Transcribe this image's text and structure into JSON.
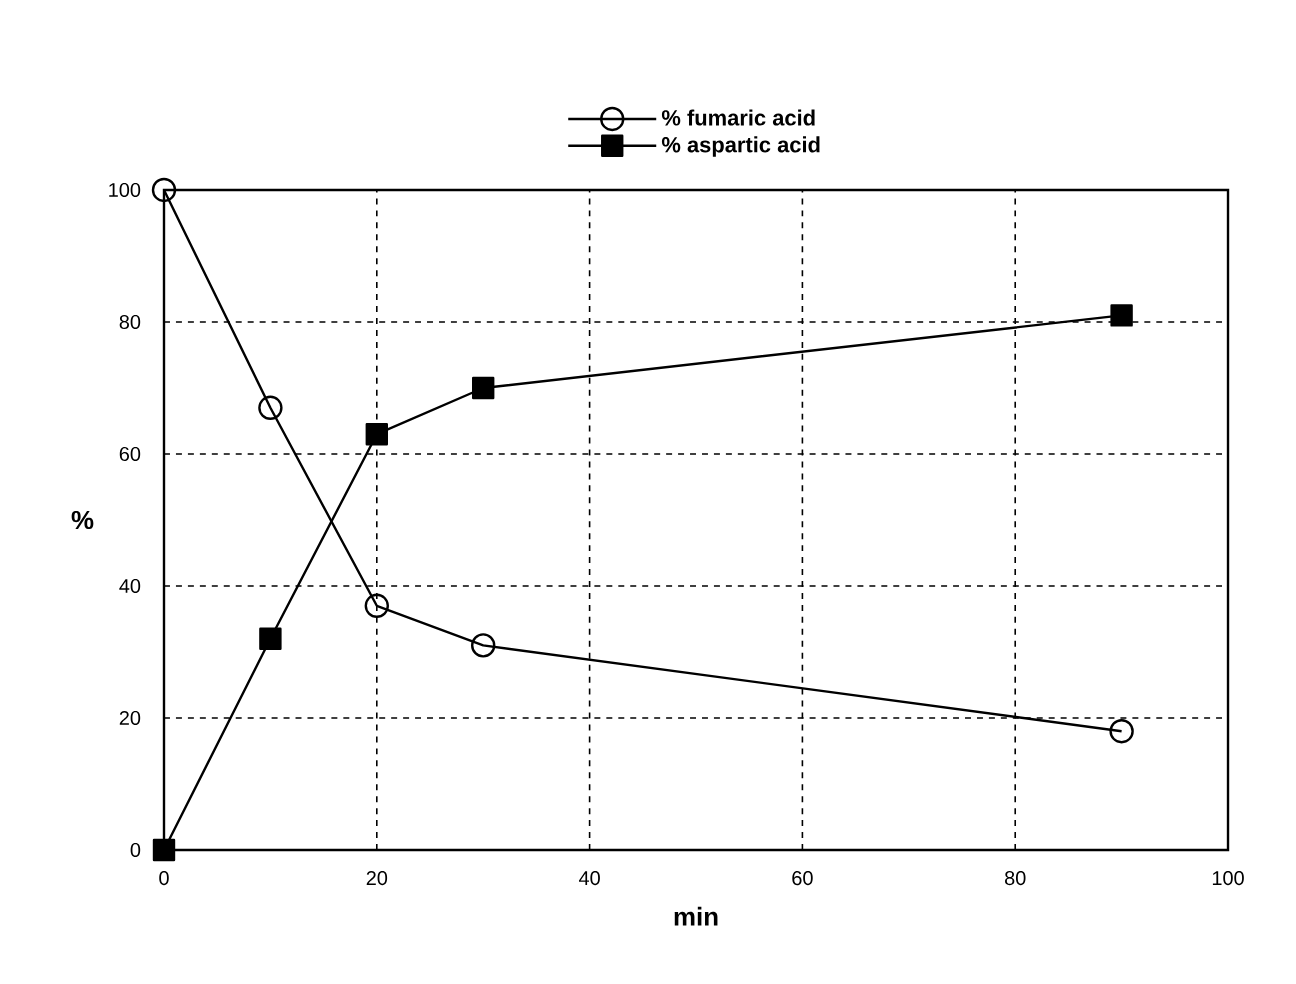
{
  "chart_data": {
    "type": "line",
    "xlabel": "min",
    "ylabel": "%",
    "x": [
      0,
      10,
      20,
      30,
      90
    ],
    "series": [
      {
        "name": "% fumaric acid",
        "color": "#000000",
        "marker": "circle",
        "values": [
          100,
          67,
          37,
          31,
          18
        ]
      },
      {
        "name": "% aspartic acid",
        "color": "#000000",
        "marker": "square",
        "values": [
          0,
          32,
          63,
          70,
          81
        ]
      }
    ],
    "xlim": [
      0,
      100
    ],
    "ylim": [
      0,
      100
    ],
    "xticks": [
      0,
      20,
      40,
      60,
      80,
      100
    ],
    "yticks": [
      0,
      20,
      40,
      60,
      80,
      100
    ],
    "grid": true,
    "legend": "top",
    "line_style": "solid"
  }
}
